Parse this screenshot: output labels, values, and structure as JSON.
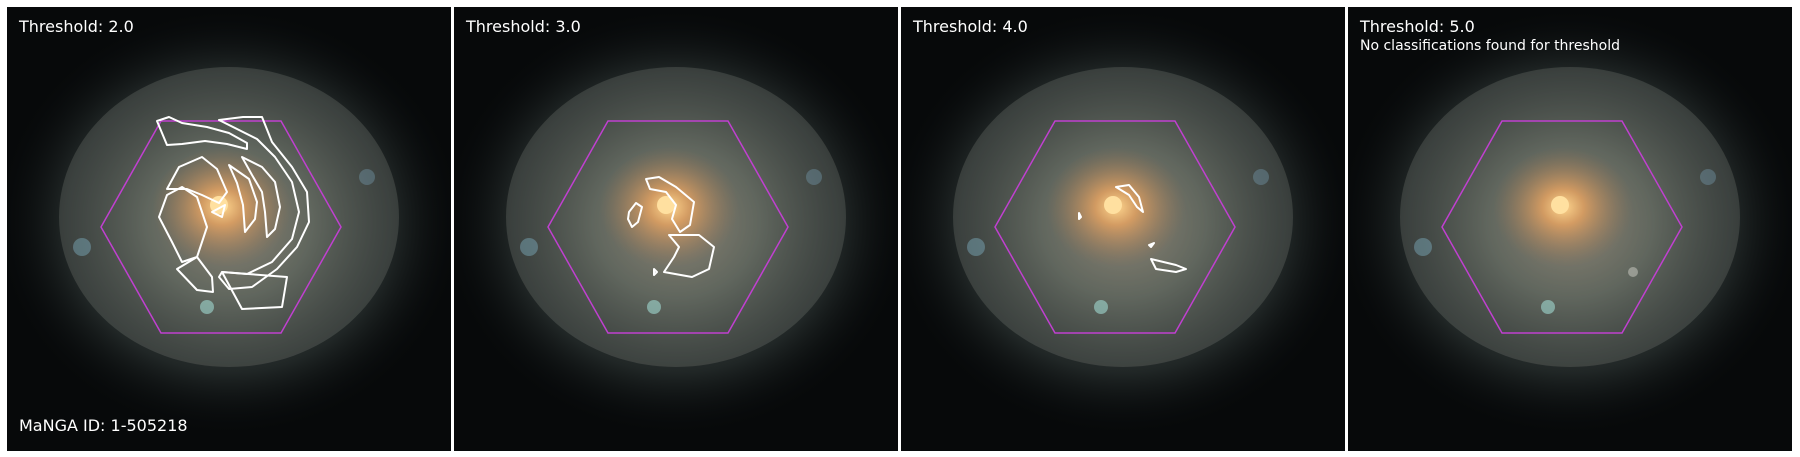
{
  "panels": [
    {
      "threshold_label": "Threshold: 2.0",
      "note": "",
      "footer": "MaNGA ID: 1-505218"
    },
    {
      "threshold_label": "Threshold: 3.0",
      "note": "",
      "footer": ""
    },
    {
      "threshold_label": "Threshold: 4.0",
      "note": "",
      "footer": ""
    },
    {
      "threshold_label": "Threshold: 5.0",
      "note": "No classifications found for threshold",
      "footer": ""
    }
  ],
  "colors": {
    "hexagon": "#c040d0",
    "contour": "#ffffff",
    "background": "#07090a",
    "core": "#ffc070"
  }
}
